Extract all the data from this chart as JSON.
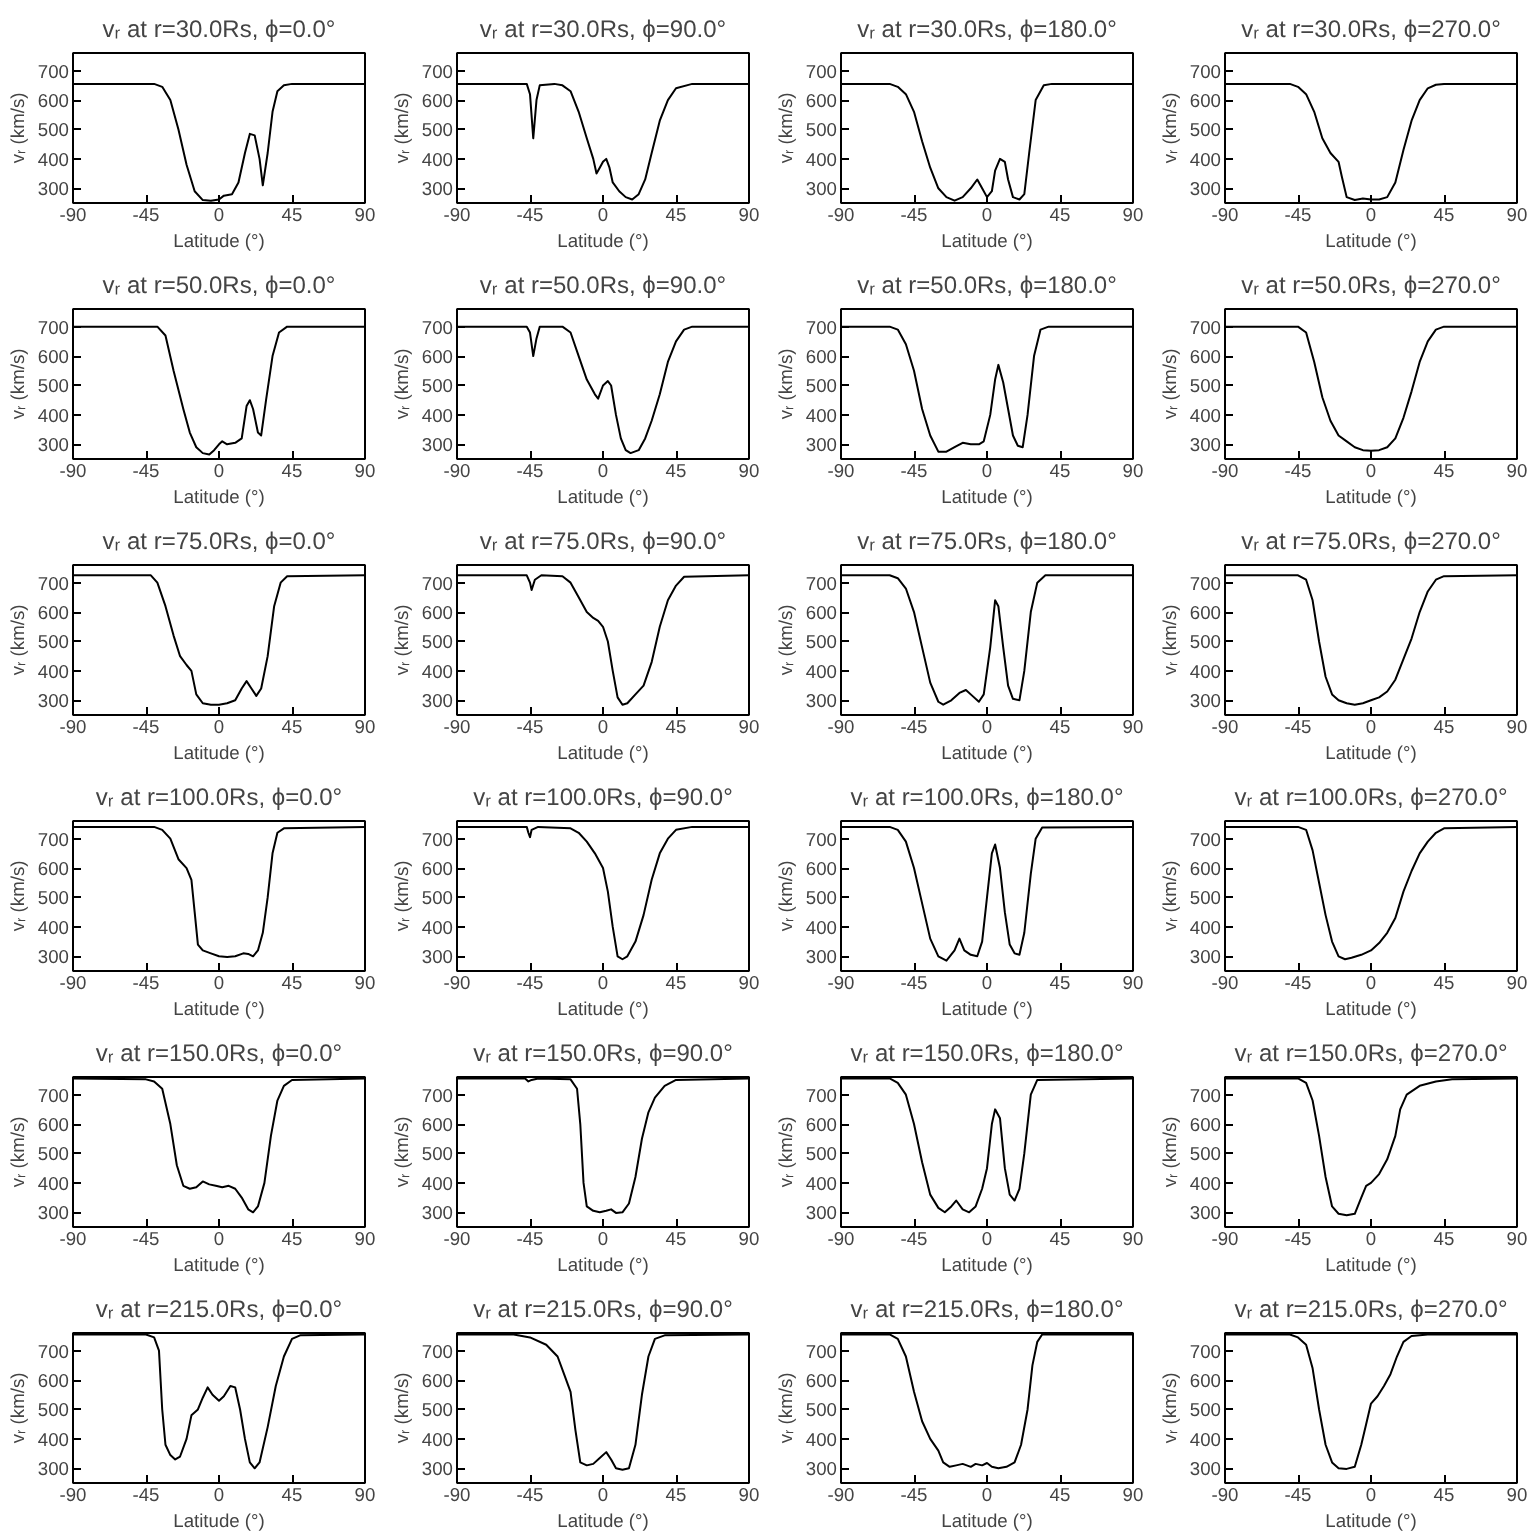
{
  "chart_data": [
    {
      "type": "line",
      "title": "vᵣ at r=30.0Rs, ϕ=0.0°",
      "xlabel": "Latitude (°)",
      "ylabel": "vᵣ (km/s)",
      "color": "#000000",
      "xlim": [
        -90,
        90
      ],
      "ylim": [
        250,
        760
      ],
      "xticks": [
        -90,
        -45,
        0,
        45,
        90
      ],
      "yticks": [
        300,
        400,
        500,
        600,
        700
      ],
      "x": [
        -90,
        -40,
        -35,
        -30,
        -25,
        -20,
        -15,
        -10,
        -5,
        0,
        3,
        8,
        12,
        16,
        19,
        22,
        25,
        27,
        30,
        33,
        36,
        40,
        45,
        90
      ],
      "values": [
        655,
        655,
        645,
        600,
        500,
        380,
        290,
        260,
        258,
        262,
        275,
        280,
        320,
        420,
        485,
        480,
        400,
        310,
        420,
        560,
        630,
        650,
        655,
        655
      ]
    },
    {
      "type": "line",
      "title": "vᵣ at r=30.0Rs, ϕ=90.0°",
      "xlabel": "Latitude (°)",
      "ylabel": "vᵣ (km/s)",
      "color": "#000000",
      "xlim": [
        -90,
        90
      ],
      "ylim": [
        250,
        760
      ],
      "xticks": [
        -90,
        -45,
        0,
        45,
        90
      ],
      "yticks": [
        300,
        400,
        500,
        600,
        700
      ],
      "x": [
        -90,
        -47,
        -45,
        -43,
        -41,
        -39,
        -30,
        -25,
        -20,
        -15,
        -10,
        -6,
        -4,
        -2,
        0,
        2,
        4,
        6,
        10,
        14,
        18,
        22,
        26,
        30,
        35,
        40,
        45,
        55,
        90
      ],
      "values": [
        655,
        655,
        620,
        470,
        600,
        650,
        655,
        650,
        630,
        560,
        470,
        400,
        350,
        370,
        390,
        400,
        370,
        320,
        290,
        270,
        262,
        280,
        330,
        420,
        530,
        600,
        640,
        655,
        655
      ]
    },
    {
      "type": "line",
      "title": "vᵣ at r=30.0Rs, ϕ=180.0°",
      "xlabel": "Latitude (°)",
      "ylabel": "vᵣ (km/s)",
      "color": "#000000",
      "xlim": [
        -90,
        90
      ],
      "ylim": [
        250,
        760
      ],
      "xticks": [
        -90,
        -45,
        0,
        45,
        90
      ],
      "yticks": [
        300,
        400,
        500,
        600,
        700
      ],
      "x": [
        -90,
        -60,
        -55,
        -50,
        -45,
        -40,
        -35,
        -30,
        -25,
        -20,
        -15,
        -10,
        -6,
        -3,
        0,
        3,
        5,
        8,
        11,
        13,
        16,
        20,
        23,
        26,
        30,
        35,
        40,
        90
      ],
      "values": [
        655,
        655,
        645,
        620,
        560,
        460,
        370,
        300,
        270,
        258,
        270,
        300,
        330,
        300,
        270,
        290,
        360,
        400,
        390,
        330,
        270,
        262,
        280,
        420,
        600,
        650,
        655,
        655
      ]
    },
    {
      "type": "line",
      "title": "vᵣ at r=30.0Rs, ϕ=270.0°",
      "xlabel": "Latitude (°)",
      "ylabel": "vᵣ (km/s)",
      "color": "#000000",
      "xlim": [
        -90,
        90
      ],
      "ylim": [
        250,
        760
      ],
      "xticks": [
        -90,
        -45,
        0,
        45,
        90
      ],
      "yticks": [
        300,
        400,
        500,
        600,
        700
      ],
      "x": [
        -90,
        -50,
        -45,
        -40,
        -35,
        -30,
        -25,
        -20,
        -18,
        -15,
        -10,
        -5,
        0,
        5,
        10,
        15,
        20,
        25,
        30,
        35,
        40,
        45,
        90
      ],
      "values": [
        655,
        655,
        645,
        620,
        560,
        470,
        420,
        390,
        340,
        270,
        260,
        265,
        262,
        262,
        270,
        320,
        430,
        530,
        600,
        640,
        652,
        655,
        655
      ]
    },
    {
      "type": "line",
      "title": "vᵣ at r=50.0Rs, ϕ=0.0°",
      "xlabel": "Latitude (°)",
      "ylabel": "vᵣ (km/s)",
      "color": "#000000",
      "xlim": [
        -90,
        90
      ],
      "ylim": [
        250,
        760
      ],
      "xticks": [
        -90,
        -45,
        0,
        45,
        90
      ],
      "yticks": [
        300,
        400,
        500,
        600,
        700
      ],
      "x": [
        -90,
        -38,
        -33,
        -28,
        -22,
        -18,
        -14,
        -10,
        -6,
        -3,
        0,
        2,
        5,
        10,
        14,
        17,
        19,
        21,
        24,
        26,
        29,
        33,
        37,
        42,
        90
      ],
      "values": [
        700,
        700,
        670,
        550,
        420,
        340,
        290,
        270,
        265,
        280,
        300,
        310,
        300,
        305,
        320,
        430,
        450,
        420,
        340,
        330,
        450,
        600,
        680,
        700,
        700
      ]
    },
    {
      "type": "line",
      "title": "vᵣ at r=50.0Rs, ϕ=90.0°",
      "xlabel": "Latitude (°)",
      "ylabel": "vᵣ (km/s)",
      "color": "#000000",
      "xlim": [
        -90,
        90
      ],
      "ylim": [
        250,
        760
      ],
      "xticks": [
        -90,
        -45,
        0,
        45,
        90
      ],
      "yticks": [
        300,
        400,
        500,
        600,
        700
      ],
      "x": [
        -90,
        -47,
        -45,
        -43,
        -41,
        -39,
        -25,
        -20,
        -15,
        -10,
        -5,
        -3,
        0,
        3,
        5,
        8,
        11,
        14,
        17,
        22,
        26,
        30,
        35,
        40,
        45,
        50,
        55,
        90
      ],
      "values": [
        700,
        700,
        680,
        600,
        660,
        700,
        700,
        680,
        600,
        520,
        470,
        455,
        500,
        515,
        500,
        400,
        320,
        280,
        270,
        280,
        320,
        380,
        470,
        580,
        650,
        690,
        700,
        700
      ]
    },
    {
      "type": "line",
      "title": "vᵣ at r=50.0Rs, ϕ=180.0°",
      "xlabel": "Latitude (°)",
      "ylabel": "vᵣ (km/s)",
      "color": "#000000",
      "xlim": [
        -90,
        90
      ],
      "ylim": [
        250,
        760
      ],
      "xticks": [
        -90,
        -45,
        0,
        45,
        90
      ],
      "yticks": [
        300,
        400,
        500,
        600,
        700
      ],
      "x": [
        -90,
        -60,
        -55,
        -50,
        -45,
        -40,
        -35,
        -30,
        -25,
        -20,
        -15,
        -10,
        -5,
        -2,
        2,
        5,
        7,
        10,
        13,
        16,
        19,
        22,
        25,
        29,
        33,
        38,
        90
      ],
      "values": [
        700,
        700,
        690,
        640,
        550,
        420,
        330,
        275,
        275,
        290,
        305,
        300,
        300,
        310,
        400,
        520,
        570,
        510,
        420,
        330,
        295,
        290,
        400,
        600,
        690,
        700,
        700
      ]
    },
    {
      "type": "line",
      "title": "vᵣ at r=50.0Rs, ϕ=270.0°",
      "xlabel": "Latitude (°)",
      "ylabel": "vᵣ (km/s)",
      "color": "#000000",
      "xlim": [
        -90,
        90
      ],
      "ylim": [
        250,
        760
      ],
      "xticks": [
        -90,
        -45,
        0,
        45,
        90
      ],
      "yticks": [
        300,
        400,
        500,
        600,
        700
      ],
      "x": [
        -90,
        -45,
        -40,
        -35,
        -30,
        -25,
        -20,
        -15,
        -10,
        -5,
        0,
        5,
        10,
        15,
        20,
        25,
        30,
        35,
        40,
        45,
        90
      ],
      "values": [
        700,
        700,
        680,
        580,
        460,
        380,
        330,
        310,
        290,
        280,
        278,
        280,
        290,
        320,
        390,
        480,
        580,
        650,
        690,
        700,
        700
      ]
    },
    {
      "type": "line",
      "title": "vᵣ at r=75.0Rs, ϕ=0.0°",
      "xlabel": "Latitude (°)",
      "ylabel": "vᵣ (km/s)",
      "color": "#000000",
      "xlim": [
        -90,
        90
      ],
      "ylim": [
        250,
        760
      ],
      "xticks": [
        -90,
        -45,
        0,
        45,
        90
      ],
      "yticks": [
        300,
        400,
        500,
        600,
        700
      ],
      "x": [
        -90,
        -42,
        -38,
        -33,
        -28,
        -24,
        -20,
        -17,
        -14,
        -10,
        -5,
        0,
        5,
        10,
        14,
        17,
        20,
        23,
        26,
        30,
        34,
        38,
        42,
        90
      ],
      "values": [
        725,
        725,
        700,
        620,
        520,
        450,
        420,
        400,
        320,
        290,
        285,
        285,
        290,
        300,
        340,
        365,
        340,
        315,
        340,
        450,
        620,
        700,
        722,
        725
      ]
    },
    {
      "type": "line",
      "title": "vᵣ at r=75.0Rs, ϕ=90.0°",
      "xlabel": "Latitude (°)",
      "ylabel": "vᵣ (km/s)",
      "color": "#000000",
      "xlim": [
        -90,
        90
      ],
      "ylim": [
        250,
        760
      ],
      "xticks": [
        -90,
        -45,
        0,
        45,
        90
      ],
      "yticks": [
        300,
        400,
        500,
        600,
        700
      ],
      "x": [
        -90,
        -47,
        -45,
        -44,
        -42,
        -38,
        -25,
        -20,
        -15,
        -10,
        -6,
        -3,
        0,
        3,
        6,
        9,
        12,
        15,
        20,
        25,
        30,
        35,
        40,
        45,
        50,
        90
      ],
      "values": [
        725,
        725,
        700,
        675,
        710,
        725,
        722,
        700,
        650,
        600,
        580,
        570,
        550,
        500,
        400,
        310,
        285,
        290,
        320,
        350,
        430,
        550,
        640,
        690,
        720,
        725
      ]
    },
    {
      "type": "line",
      "title": "vᵣ at r=75.0Rs, ϕ=180.0°",
      "xlabel": "Latitude (°)",
      "ylabel": "vᵣ (km/s)",
      "color": "#000000",
      "xlim": [
        -90,
        90
      ],
      "ylim": [
        250,
        760
      ],
      "xticks": [
        -90,
        -45,
        0,
        45,
        90
      ],
      "yticks": [
        300,
        400,
        500,
        600,
        700
      ],
      "x": [
        -90,
        -60,
        -55,
        -50,
        -45,
        -40,
        -35,
        -30,
        -27,
        -22,
        -17,
        -13,
        -9,
        -5,
        -2,
        2,
        5,
        7,
        10,
        13,
        16,
        20,
        23,
        27,
        31,
        36,
        90
      ],
      "values": [
        725,
        725,
        715,
        680,
        600,
        480,
        360,
        295,
        285,
        300,
        325,
        335,
        315,
        295,
        320,
        480,
        640,
        620,
        480,
        350,
        305,
        300,
        400,
        600,
        700,
        725,
        725
      ]
    },
    {
      "type": "line",
      "title": "vᵣ at r=75.0Rs, ϕ=270.0°",
      "xlabel": "Latitude (°)",
      "ylabel": "vᵣ (km/s)",
      "color": "#000000",
      "xlim": [
        -90,
        90
      ],
      "ylim": [
        250,
        760
      ],
      "xticks": [
        -90,
        -45,
        0,
        45,
        90
      ],
      "yticks": [
        300,
        400,
        500,
        600,
        700
      ],
      "x": [
        -90,
        -45,
        -40,
        -36,
        -32,
        -28,
        -24,
        -20,
        -15,
        -10,
        -5,
        0,
        5,
        10,
        15,
        20,
        25,
        30,
        35,
        40,
        45,
        90
      ],
      "values": [
        725,
        725,
        710,
        640,
        500,
        380,
        320,
        300,
        290,
        285,
        290,
        300,
        310,
        330,
        370,
        440,
        510,
        600,
        670,
        710,
        722,
        725
      ]
    },
    {
      "type": "line",
      "title": "vᵣ at r=100.0Rs, ϕ=0.0°",
      "xlabel": "Latitude (°)",
      "ylabel": "vᵣ (km/s)",
      "color": "#000000",
      "xlim": [
        -90,
        90
      ],
      "ylim": [
        250,
        760
      ],
      "xticks": [
        -90,
        -45,
        0,
        45,
        90
      ],
      "yticks": [
        300,
        400,
        500,
        600,
        700
      ],
      "x": [
        -90,
        -40,
        -35,
        -30,
        -25,
        -20,
        -17,
        -15,
        -13,
        -10,
        -5,
        0,
        5,
        10,
        15,
        18,
        21,
        24,
        27,
        30,
        33,
        36,
        40,
        90
      ],
      "values": [
        740,
        740,
        730,
        700,
        630,
        600,
        560,
        450,
        340,
        320,
        310,
        300,
        298,
        300,
        310,
        308,
        300,
        320,
        380,
        500,
        650,
        720,
        735,
        740
      ]
    },
    {
      "type": "line",
      "title": "vᵣ at r=100.0Rs, ϕ=90.0°",
      "xlabel": "Latitude (°)",
      "ylabel": "vᵣ (km/s)",
      "color": "#000000",
      "xlim": [
        -90,
        90
      ],
      "ylim": [
        250,
        760
      ],
      "xticks": [
        -90,
        -45,
        0,
        45,
        90
      ],
      "yticks": [
        300,
        400,
        500,
        600,
        700
      ],
      "x": [
        -90,
        -47,
        -46,
        -45,
        -44,
        -40,
        -20,
        -15,
        -10,
        -5,
        0,
        3,
        6,
        9,
        12,
        15,
        20,
        25,
        30,
        35,
        40,
        45,
        55,
        90
      ],
      "values": [
        740,
        740,
        720,
        705,
        730,
        740,
        735,
        720,
        690,
        650,
        600,
        520,
        400,
        300,
        290,
        300,
        350,
        440,
        560,
        650,
        700,
        730,
        740,
        740
      ]
    },
    {
      "type": "line",
      "title": "vᵣ at r=100.0Rs, ϕ=180.0°",
      "xlabel": "Latitude (°)",
      "ylabel": "vᵣ (km/s)",
      "color": "#000000",
      "xlim": [
        -90,
        90
      ],
      "ylim": [
        250,
        760
      ],
      "xticks": [
        -90,
        -45,
        0,
        45,
        90
      ],
      "yticks": [
        300,
        400,
        500,
        600,
        700
      ],
      "x": [
        -90,
        -60,
        -55,
        -50,
        -45,
        -40,
        -35,
        -30,
        -25,
        -20,
        -17,
        -14,
        -10,
        -6,
        -3,
        0,
        3,
        5,
        8,
        11,
        14,
        17,
        20,
        23,
        27,
        30,
        34,
        90
      ],
      "values": [
        740,
        740,
        730,
        690,
        600,
        480,
        360,
        300,
        285,
        320,
        360,
        320,
        305,
        300,
        350,
        500,
        650,
        680,
        600,
        450,
        340,
        310,
        305,
        380,
        580,
        700,
        738,
        740
      ]
    },
    {
      "type": "line",
      "title": "vᵣ at r=100.0Rs, ϕ=270.0°",
      "xlabel": "Latitude (°)",
      "ylabel": "vᵣ (km/s)",
      "color": "#000000",
      "xlim": [
        -90,
        90
      ],
      "ylim": [
        250,
        760
      ],
      "xticks": [
        -90,
        -45,
        0,
        45,
        90
      ],
      "yticks": [
        300,
        400,
        500,
        600,
        700
      ],
      "x": [
        -90,
        -45,
        -40,
        -36,
        -32,
        -28,
        -24,
        -20,
        -16,
        -12,
        -6,
        0,
        5,
        10,
        15,
        20,
        25,
        30,
        35,
        40,
        45,
        90
      ],
      "values": [
        740,
        740,
        730,
        660,
        550,
        440,
        350,
        300,
        290,
        295,
        305,
        320,
        345,
        380,
        430,
        520,
        590,
        650,
        690,
        720,
        735,
        740
      ]
    },
    {
      "type": "line",
      "title": "vᵣ at r=150.0Rs, ϕ=0.0°",
      "xlabel": "Latitude (°)",
      "ylabel": "vᵣ (km/s)",
      "color": "#000000",
      "xlim": [
        -90,
        90
      ],
      "ylim": [
        250,
        760
      ],
      "xticks": [
        -90,
        -45,
        0,
        45,
        90
      ],
      "yticks": [
        300,
        400,
        500,
        600,
        700
      ],
      "x": [
        -90,
        -45,
        -40,
        -35,
        -30,
        -26,
        -22,
        -18,
        -14,
        -10,
        -6,
        -2,
        2,
        6,
        10,
        14,
        18,
        21,
        24,
        28,
        32,
        36,
        40,
        45,
        90
      ],
      "values": [
        755,
        752,
        745,
        720,
        600,
        460,
        390,
        380,
        385,
        405,
        395,
        390,
        385,
        390,
        380,
        350,
        310,
        300,
        320,
        400,
        560,
        680,
        730,
        750,
        755
      ]
    },
    {
      "type": "line",
      "title": "vᵣ at r=150.0Rs, ϕ=90.0°",
      "xlabel": "Latitude (°)",
      "ylabel": "vᵣ (km/s)",
      "color": "#000000",
      "xlim": [
        -90,
        90
      ],
      "ylim": [
        250,
        760
      ],
      "xticks": [
        -90,
        -45,
        0,
        45,
        90
      ],
      "yticks": [
        300,
        400,
        500,
        600,
        700
      ],
      "x": [
        -90,
        -48,
        -46,
        -44,
        -40,
        -20,
        -16,
        -14,
        -12,
        -10,
        -6,
        -2,
        2,
        5,
        8,
        12,
        16,
        20,
        24,
        28,
        32,
        38,
        45,
        90
      ],
      "values": [
        755,
        755,
        745,
        750,
        755,
        752,
        720,
        600,
        400,
        320,
        305,
        300,
        305,
        310,
        298,
        300,
        330,
        420,
        550,
        640,
        690,
        730,
        750,
        755
      ]
    },
    {
      "type": "line",
      "title": "vᵣ at r=150.0Rs, ϕ=180.0°",
      "xlabel": "Latitude (°)",
      "ylabel": "vᵣ (km/s)",
      "color": "#000000",
      "xlim": [
        -90,
        90
      ],
      "ylim": [
        250,
        760
      ],
      "xticks": [
        -90,
        -45,
        0,
        45,
        90
      ],
      "yticks": [
        300,
        400,
        500,
        600,
        700
      ],
      "x": [
        -90,
        -60,
        -55,
        -50,
        -45,
        -40,
        -35,
        -30,
        -26,
        -22,
        -19,
        -15,
        -11,
        -7,
        -3,
        0,
        3,
        5,
        8,
        11,
        14,
        17,
        20,
        23,
        27,
        31,
        90
      ],
      "values": [
        755,
        755,
        740,
        700,
        600,
        470,
        360,
        315,
        300,
        320,
        340,
        310,
        300,
        320,
        380,
        450,
        600,
        650,
        620,
        450,
        360,
        340,
        380,
        500,
        700,
        750,
        755
      ]
    },
    {
      "type": "line",
      "title": "vᵣ at r=150.0Rs, ϕ=270.0°",
      "xlabel": "Latitude (°)",
      "ylabel": "vᵣ (km/s)",
      "color": "#000000",
      "xlim": [
        -90,
        90
      ],
      "ylim": [
        250,
        760
      ],
      "xticks": [
        -90,
        -45,
        0,
        45,
        90
      ],
      "yticks": [
        300,
        400,
        500,
        600,
        700
      ],
      "x": [
        -90,
        -45,
        -40,
        -36,
        -32,
        -28,
        -24,
        -20,
        -15,
        -10,
        -6,
        -3,
        0,
        5,
        10,
        15,
        18,
        22,
        30,
        40,
        50,
        90
      ],
      "values": [
        755,
        755,
        740,
        680,
        560,
        420,
        320,
        295,
        290,
        295,
        350,
        390,
        400,
        430,
        480,
        560,
        650,
        700,
        730,
        745,
        752,
        755
      ]
    },
    {
      "type": "line",
      "title": "vᵣ at r=215.0Rs, ϕ=0.0°",
      "xlabel": "Latitude (°)",
      "ylabel": "vᵣ (km/s)",
      "color": "#000000",
      "xlim": [
        -90,
        90
      ],
      "ylim": [
        250,
        760
      ],
      "xticks": [
        -90,
        -45,
        0,
        45,
        90
      ],
      "yticks": [
        300,
        400,
        500,
        600,
        700
      ],
      "x": [
        -90,
        -45,
        -40,
        -37,
        -35,
        -33,
        -30,
        -27,
        -24,
        -20,
        -17,
        -13,
        -10,
        -7,
        -4,
        0,
        3,
        7,
        10,
        13,
        16,
        19,
        22,
        25,
        30,
        35,
        40,
        45,
        50,
        90
      ],
      "values": [
        755,
        755,
        745,
        700,
        500,
        380,
        345,
        330,
        340,
        400,
        480,
        500,
        540,
        575,
        550,
        530,
        545,
        580,
        575,
        500,
        400,
        320,
        300,
        320,
        440,
        580,
        680,
        740,
        752,
        755
      ]
    },
    {
      "type": "line",
      "title": "vᵣ at r=215.0Rs, ϕ=90.0°",
      "xlabel": "Latitude (°)",
      "ylabel": "vᵣ (km/s)",
      "color": "#000000",
      "xlim": [
        -90,
        90
      ],
      "ylim": [
        250,
        760
      ],
      "xticks": [
        -90,
        -45,
        0,
        45,
        90
      ],
      "yticks": [
        300,
        400,
        500,
        600,
        700
      ],
      "x": [
        -90,
        -55,
        -45,
        -35,
        -28,
        -24,
        -20,
        -17,
        -14,
        -10,
        -6,
        -2,
        2,
        5,
        8,
        12,
        16,
        20,
        24,
        28,
        32,
        38,
        90
      ],
      "values": [
        755,
        755,
        745,
        720,
        680,
        620,
        560,
        430,
        320,
        310,
        315,
        335,
        355,
        330,
        300,
        295,
        300,
        380,
        550,
        680,
        740,
        752,
        755
      ]
    },
    {
      "type": "line",
      "title": "vᵣ at r=215.0Rs, ϕ=180.0°",
      "xlabel": "Latitude (°)",
      "ylabel": "vᵣ (km/s)",
      "color": "#000000",
      "xlim": [
        -90,
        90
      ],
      "ylim": [
        250,
        760
      ],
      "xticks": [
        -90,
        -45,
        0,
        45,
        90
      ],
      "yticks": [
        300,
        400,
        500,
        600,
        700
      ],
      "x": [
        -90,
        -60,
        -55,
        -50,
        -45,
        -40,
        -35,
        -30,
        -27,
        -23,
        -19,
        -15,
        -10,
        -7,
        -3,
        0,
        3,
        7,
        12,
        17,
        21,
        25,
        28,
        31,
        34,
        90
      ],
      "values": [
        755,
        755,
        740,
        680,
        560,
        460,
        400,
        360,
        320,
        305,
        310,
        315,
        305,
        315,
        310,
        318,
        305,
        300,
        305,
        320,
        380,
        500,
        650,
        730,
        755,
        755
      ]
    },
    {
      "type": "line",
      "title": "vᵣ at r=215.0Rs, ϕ=270.0°",
      "xlabel": "Latitude (°)",
      "ylabel": "vᵣ (km/s)",
      "color": "#000000",
      "xlim": [
        -90,
        90
      ],
      "ylim": [
        250,
        760
      ],
      "xticks": [
        -90,
        -45,
        0,
        45,
        90
      ],
      "yticks": [
        300,
        400,
        500,
        600,
        700
      ],
      "x": [
        -90,
        -50,
        -45,
        -40,
        -36,
        -32,
        -28,
        -24,
        -20,
        -15,
        -10,
        -6,
        -3,
        0,
        4,
        8,
        12,
        16,
        20,
        25,
        35,
        90
      ],
      "values": [
        755,
        755,
        745,
        720,
        640,
        500,
        380,
        320,
        300,
        298,
        305,
        380,
        450,
        520,
        545,
        580,
        620,
        680,
        730,
        750,
        755,
        755
      ]
    }
  ]
}
